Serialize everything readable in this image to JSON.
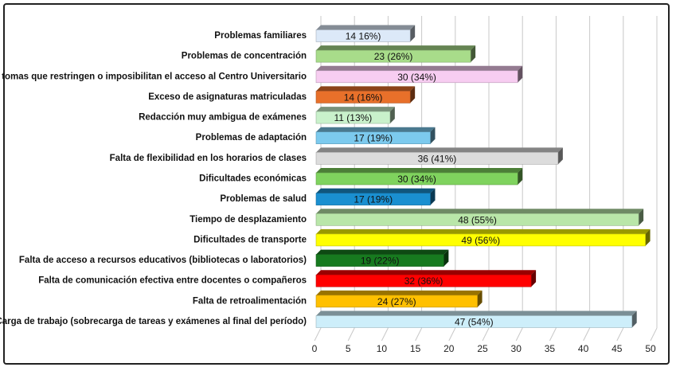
{
  "chart_data": {
    "type": "bar",
    "orientation": "horizontal",
    "style": "3d",
    "categories": [
      "Problemas familiares",
      "Problemas de concentración",
      "Protestas y tomas que restringen o imposibilitan el acceso al Centro Universitario",
      "Exceso de asignaturas matriculadas",
      "Redacción muy ambigua de exámenes",
      "Problemas de adaptación",
      "Falta de flexibilidad en los horarios de clases",
      "Dificultades económicas",
      "Problemas de salud",
      "Tiempo de desplazamiento",
      "Dificultades de transporte",
      "Falta de acceso a recursos educativos (bibliotecas o laboratorios)",
      "Falta de comunicación efectiva entre docentes o compañeros",
      "Falta de retroalimentación",
      "Carga de trabajo (sobrecarga de tareas y exámenes al final del período)"
    ],
    "values": [
      14,
      23,
      30,
      14,
      11,
      17,
      36,
      30,
      17,
      48,
      49,
      19,
      32,
      24,
      47
    ],
    "data_labels": [
      "14 16%)",
      "23 (26%)",
      "30 (34%)",
      "14 (16%)",
      "11 (13%)",
      "17 (19%)",
      "36 (41%)",
      "30 (34%)",
      "17 (19%)",
      "48 (55%)",
      "49 (56%)",
      "19 (22%)",
      "32 (36%)",
      "24 (27%)",
      "47 (54%)"
    ],
    "colors": [
      "#dce9f8",
      "#a8dc8a",
      "#f7cdf1",
      "#e8702a",
      "#c9f1cb",
      "#7ccaee",
      "#dcdcdc",
      "#7fd35e",
      "#1a8fd0",
      "#b9e6a9",
      "#ffff00",
      "#177a1f",
      "#ff0000",
      "#ffc000",
      "#cdeefa"
    ],
    "xticks": [
      "0",
      "5",
      "10",
      "15",
      "20",
      "25",
      "30",
      "35",
      "40",
      "45",
      "50"
    ],
    "xlim": [
      0,
      50
    ],
    "grid": true,
    "title": "",
    "xlabel": "",
    "ylabel": ""
  }
}
